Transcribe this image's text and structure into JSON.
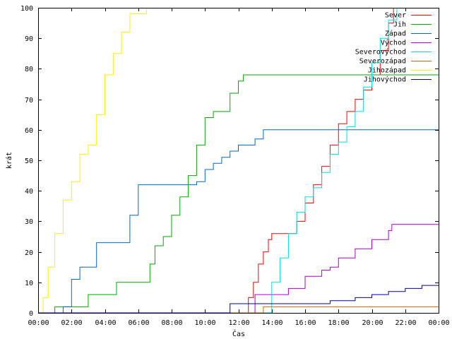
{
  "chart_data": {
    "type": "line",
    "title": "",
    "xlabel": "Čas",
    "ylabel": "krát",
    "xlim": [
      0,
      24
    ],
    "ylim": [
      0,
      100
    ],
    "x_ticks": [
      "00:00",
      "02:00",
      "04:00",
      "06:00",
      "08:00",
      "10:00",
      "12:00",
      "14:00",
      "16:00",
      "18:00",
      "20:00",
      "22:00",
      "00:00"
    ],
    "y_ticks": [
      "0",
      "10",
      "20",
      "30",
      "40",
      "50",
      "60",
      "70",
      "80",
      "90",
      "100"
    ],
    "legend_position": "top-right",
    "grid": false,
    "x_unit": "hours",
    "series": [
      {
        "name": "Sever",
        "color": "#ff0000",
        "x": [
          0,
          12.3,
          12.6,
          12.9,
          13.2,
          13.5,
          13.8,
          14.0,
          14.5,
          15.0,
          15.5,
          16.0,
          16.5,
          17.0,
          17.5,
          18.0,
          18.5,
          19.0,
          19.5,
          20.0,
          20.5,
          21.0,
          21.3,
          24
        ],
        "y": [
          0,
          0,
          5,
          10,
          16,
          20,
          24,
          26,
          26,
          26,
          30,
          36,
          42,
          48,
          55,
          62,
          66,
          70,
          73,
          78,
          86,
          95,
          100,
          100
        ]
      },
      {
        "name": "Jih",
        "color": "#00aa00",
        "x": [
          0,
          0.5,
          1.0,
          2.8,
          3.0,
          4.5,
          4.7,
          6.5,
          6.7,
          7.0,
          7.5,
          8.0,
          8.5,
          9.0,
          9.5,
          10.0,
          10.5,
          11.0,
          11.5,
          12.0,
          12.3,
          13.0,
          24
        ],
        "y": [
          0,
          0,
          2,
          2,
          6,
          6,
          10,
          10,
          16,
          22,
          25,
          32,
          38,
          45,
          55,
          64,
          66,
          66,
          72,
          76,
          78,
          78,
          78
        ]
      },
      {
        "name": "Západ",
        "color": "#0066cc",
        "x": [
          0,
          1.0,
          1.5,
          2.0,
          2.5,
          3.5,
          4.0,
          5.0,
          5.5,
          6.0,
          9.0,
          9.5,
          10.0,
          10.5,
          11.0,
          11.5,
          12.0,
          13.0,
          13.5,
          24
        ],
        "y": [
          0,
          0,
          2,
          11,
          15,
          23,
          23,
          23,
          32,
          42,
          42,
          43,
          47,
          49,
          51,
          53,
          55,
          57,
          60,
          60
        ]
      },
      {
        "name": "Východ",
        "color": "#aa00cc",
        "x": [
          0,
          12.5,
          13.0,
          14.5,
          15.0,
          16.0,
          17.0,
          17.5,
          18.0,
          19.0,
          20.0,
          21.0,
          21.2,
          24
        ],
        "y": [
          0,
          0,
          6,
          6,
          8,
          12,
          14,
          15,
          18,
          21,
          24,
          27,
          29,
          29
        ]
      },
      {
        "name": "Severovýchod",
        "color": "#00dddd",
        "x": [
          0,
          13.5,
          14.0,
          14.5,
          15.0,
          15.5,
          16.0,
          16.5,
          17.0,
          17.5,
          18.0,
          18.5,
          19.0,
          19.5,
          20.0,
          20.5,
          21.0,
          21.5,
          24
        ],
        "y": [
          0,
          0,
          10,
          18,
          26,
          33,
          38,
          41,
          46,
          52,
          56,
          61,
          66,
          74,
          82,
          90,
          96,
          100,
          100
        ]
      },
      {
        "name": "Severozápad",
        "color": "#cc6600",
        "x": [
          0,
          13.3,
          13.5,
          24
        ],
        "y": [
          0,
          0,
          2,
          2
        ]
      },
      {
        "name": "Jihozápad",
        "color": "#ffee00",
        "x": [
          0,
          0.3,
          0.6,
          1.0,
          1.5,
          2.0,
          2.5,
          3.0,
          3.5,
          4.0,
          4.5,
          5.0,
          5.5,
          6.0,
          6.5
        ],
        "y": [
          0,
          5,
          15,
          26,
          37,
          43,
          52,
          55,
          65,
          78,
          85,
          92,
          98,
          98,
          100
        ]
      },
      {
        "name": "Jihovýchod",
        "color": "#0000aa",
        "x": [
          0,
          11.2,
          11.5,
          16.0,
          17.5,
          19.0,
          20.0,
          21.0,
          22.0,
          23.0,
          24
        ],
        "y": [
          0,
          0,
          3,
          3,
          4,
          5,
          6,
          7,
          8,
          9,
          9
        ]
      }
    ]
  }
}
